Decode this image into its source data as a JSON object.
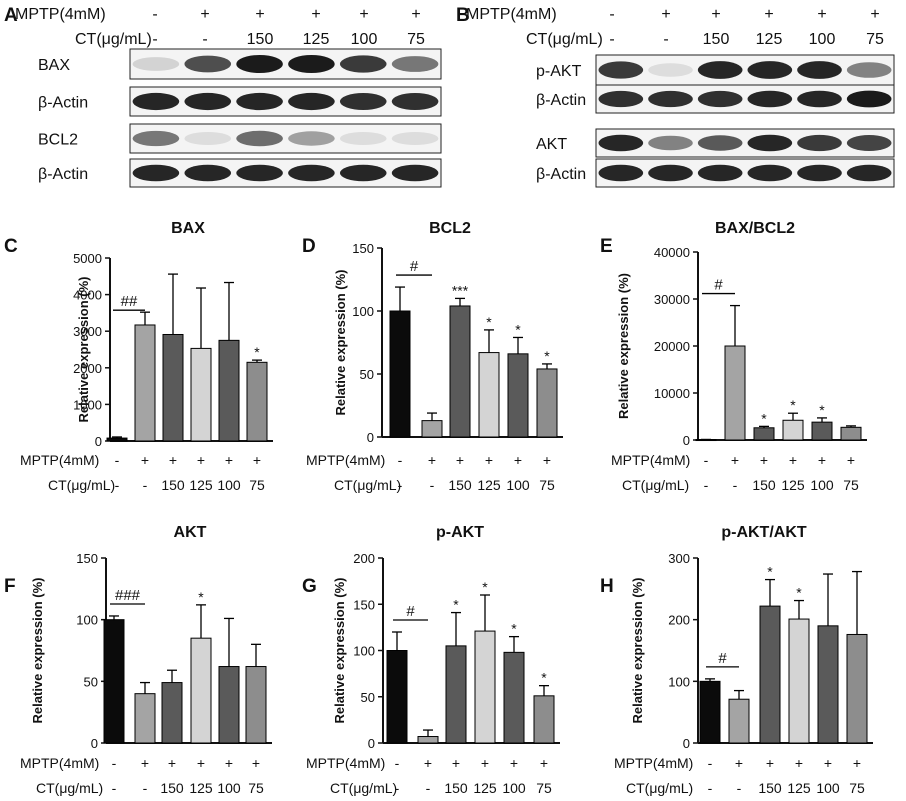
{
  "colors": {
    "black": "#0b0b0b",
    "dark_gray": "#5a5a5a",
    "mid_gray": "#8d8d8d",
    "gray": "#a4a4a4",
    "light_gray": "#d4d4d4",
    "axis": "#111111"
  },
  "blots": {
    "panelA": {
      "letter": "A",
      "header": {
        "mptp_label": "MPTP(4mM)",
        "mptp_marks": [
          "-",
          "+",
          "+",
          "+",
          "+",
          "+"
        ],
        "ct_label": "CT(μg/mL)",
        "ct_marks": [
          "-",
          "-",
          "150",
          "125",
          "100",
          "75"
        ]
      },
      "rows": [
        {
          "label": "BAX",
          "intensity": [
            0.1,
            0.75,
            1.0,
            1.0,
            0.85,
            0.55
          ]
        },
        {
          "label": "β-Actin",
          "intensity": [
            0.95,
            0.95,
            0.95,
            0.95,
            0.9,
            0.9
          ]
        },
        {
          "label": "BCL2",
          "intensity": [
            0.55,
            0.05,
            0.6,
            0.35,
            0.05,
            0.05
          ]
        },
        {
          "label": "β-Actin",
          "intensity": [
            0.95,
            0.95,
            0.95,
            0.95,
            0.95,
            0.95
          ]
        }
      ]
    },
    "panelB": {
      "letter": "B",
      "header": {
        "mptp_label": "MPTP(4mM)",
        "mptp_marks": [
          "-",
          "+",
          "+",
          "+",
          "+",
          "+"
        ],
        "ct_label": "CT(μg/mL)",
        "ct_marks": [
          "-",
          "-",
          "150",
          "125",
          "100",
          "75"
        ]
      },
      "rows": [
        {
          "label": "p-AKT",
          "intensity": [
            0.85,
            0.05,
            0.95,
            0.95,
            0.95,
            0.5
          ]
        },
        {
          "label": "β-Actin",
          "intensity": [
            0.9,
            0.9,
            0.9,
            0.95,
            0.95,
            1.0
          ]
        },
        {
          "label": "AKT",
          "intensity": [
            0.95,
            0.5,
            0.7,
            0.95,
            0.85,
            0.8
          ]
        },
        {
          "label": "β-Actin",
          "intensity": [
            0.95,
            0.95,
            0.95,
            0.95,
            0.95,
            0.95
          ]
        }
      ]
    }
  },
  "chart_data": [
    {
      "letter": "C",
      "type": "bar",
      "title": "BAX",
      "ylabel": "Relative expression (%)",
      "ylim": [
        0,
        5000
      ],
      "yticks": [
        0,
        1000,
        2000,
        3000,
        4000,
        5000
      ],
      "values": [
        80,
        3170,
        2910,
        2530,
        2750,
        2150
      ],
      "errors": [
        30,
        350,
        1650,
        1650,
        1580,
        60
      ],
      "stars": [
        "",
        "",
        "",
        "",
        "",
        "*"
      ],
      "hash": {
        "text": "##",
        "from": 0,
        "to": 1
      },
      "mptp_label": "MPTP(4mM)",
      "mptp_marks": [
        "-",
        "+",
        "+",
        "+",
        "+",
        "+"
      ],
      "ct_label": "CT(μg/mL)",
      "ct_marks": [
        "-",
        "-",
        "150",
        "125",
        "100",
        "75"
      ]
    },
    {
      "letter": "D",
      "type": "bar",
      "title": "BCL2",
      "ylabel": "Relative expression (%)",
      "ylim": [
        0,
        150
      ],
      "yticks": [
        0,
        50,
        100,
        150
      ],
      "values": [
        100,
        13,
        104,
        67,
        66,
        54
      ],
      "errors": [
        19,
        6,
        6,
        18,
        13,
        4
      ],
      "stars": [
        "",
        "",
        "***",
        "*",
        "*",
        "*"
      ],
      "hash": {
        "text": "#",
        "from": 0,
        "to": 1
      },
      "mptp_label": "MPTP(4mM)",
      "mptp_marks": [
        "-",
        "+",
        "+",
        "+",
        "+",
        "+"
      ],
      "ct_label": "CT(μg/mL)",
      "ct_marks": [
        "-",
        "-",
        "150",
        "125",
        "100",
        "75"
      ]
    },
    {
      "letter": "E",
      "type": "bar",
      "title": "BAX/BCL2",
      "ylabel": "Relative expression (%)",
      "ylim": [
        0,
        40000
      ],
      "yticks": [
        0,
        10000,
        20000,
        30000,
        40000
      ],
      "values": [
        100,
        20000,
        2600,
        4200,
        3800,
        2700
      ],
      "errors": [
        20,
        8600,
        300,
        1500,
        900,
        300
      ],
      "stars": [
        "",
        "",
        "*",
        "*",
        "*",
        ""
      ],
      "hash": {
        "text": "#",
        "from": 0,
        "to": 1
      },
      "mptp_label": "MPTP(4mM)",
      "mptp_marks": [
        "-",
        "+",
        "+",
        "+",
        "+",
        "+"
      ],
      "ct_label": "CT(μg/mL)",
      "ct_marks": [
        "-",
        "-",
        "150",
        "125",
        "100",
        "75"
      ]
    },
    {
      "letter": "F",
      "type": "bar",
      "title": "AKT",
      "ylabel": "Relative expression (%)",
      "ylim": [
        0,
        150
      ],
      "yticks": [
        0,
        50,
        100,
        150
      ],
      "values": [
        100,
        40,
        49,
        85,
        62,
        62
      ],
      "errors": [
        3,
        9,
        10,
        27,
        39,
        18
      ],
      "stars": [
        "",
        "",
        "",
        "*",
        "",
        ""
      ],
      "hash": {
        "text": "###",
        "from": 0,
        "to": 1
      },
      "mptp_label": "MPTP(4mM)",
      "mptp_marks": [
        "-",
        "+",
        "+",
        "+",
        "+",
        "+"
      ],
      "ct_label": "CT(μg/mL)",
      "ct_marks": [
        "-",
        "-",
        "150",
        "125",
        "100",
        "75"
      ]
    },
    {
      "letter": "G",
      "type": "bar",
      "title": "p-AKT",
      "ylabel": "Relative expression (%)",
      "ylim": [
        0,
        200
      ],
      "yticks": [
        0,
        50,
        100,
        150,
        200
      ],
      "values": [
        100,
        7,
        105,
        121,
        98,
        51
      ],
      "errors": [
        20,
        7,
        36,
        39,
        17,
        11
      ],
      "stars": [
        "",
        "",
        "*",
        "*",
        "*",
        "*"
      ],
      "hash": {
        "text": "#",
        "from": 0,
        "to": 1
      },
      "mptp_label": "MPTP(4mM)",
      "mptp_marks": [
        "-",
        "+",
        "+",
        "+",
        "+",
        "+"
      ],
      "ct_label": "CT(μg/mL)",
      "ct_marks": [
        "-",
        "-",
        "150",
        "125",
        "100",
        "75"
      ]
    },
    {
      "letter": "H",
      "type": "bar",
      "title": "p-AKT/AKT",
      "ylabel": "Relative expression (%)",
      "ylim": [
        0,
        300
      ],
      "yticks": [
        0,
        100,
        200,
        300
      ],
      "values": [
        100,
        71,
        222,
        201,
        190,
        176
      ],
      "errors": [
        4,
        14,
        43,
        30,
        84,
        102
      ],
      "stars": [
        "",
        "",
        "*",
        "*",
        "",
        ""
      ],
      "hash": {
        "text": "#",
        "from": 0,
        "to": 1
      },
      "mptp_label": "MPTP(4mM)",
      "mptp_marks": [
        "-",
        "+",
        "+",
        "+",
        "+",
        "+"
      ],
      "ct_label": "CT(μg/mL)",
      "ct_marks": [
        "-",
        "-",
        "150",
        "125",
        "100",
        "75"
      ]
    }
  ]
}
